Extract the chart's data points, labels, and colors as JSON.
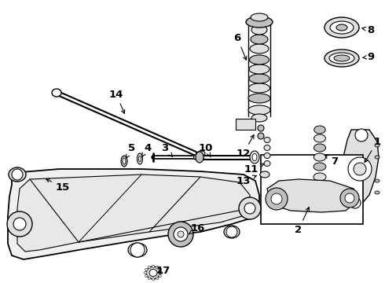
{
  "background_color": "#ffffff",
  "line_color": "#000000",
  "fig_width": 4.9,
  "fig_height": 3.6,
  "dpi": 100,
  "label_fontsize": 9.5,
  "lw_main": 1.2,
  "lw_thick": 2.0,
  "lw_thin": 0.7,
  "component_color": "#c8c8c8",
  "component_dark": "#888888",
  "white": "#ffffff"
}
